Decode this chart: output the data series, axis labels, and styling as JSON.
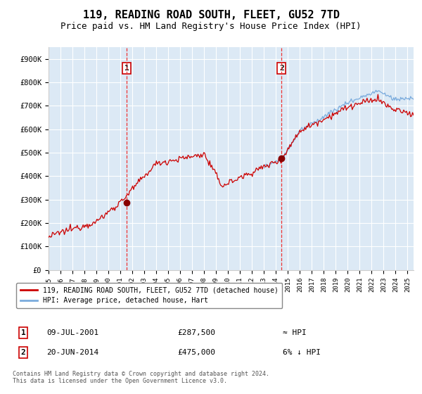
{
  "title": "119, READING ROAD SOUTH, FLEET, GU52 7TD",
  "subtitle": "Price paid vs. HM Land Registry's House Price Index (HPI)",
  "title_fontsize": 11,
  "subtitle_fontsize": 9,
  "background_color": "#ffffff",
  "plot_bg_color": "#dce9f5",
  "grid_color": "#ffffff",
  "red_line_color": "#cc0000",
  "blue_line_color": "#7aabdd",
  "dashed_line_color": "#ee3333",
  "marker_color": "#880000",
  "legend_label_red": "119, READING ROAD SOUTH, FLEET, GU52 7TD (detached house)",
  "legend_label_blue": "HPI: Average price, detached house, Hart",
  "annotation1_date": "09-JUL-2001",
  "annotation1_price": "£287,500",
  "annotation1_hpi": "≈ HPI",
  "annotation1_year": 2001.53,
  "annotation1_value": 287500,
  "annotation2_date": "20-JUN-2014",
  "annotation2_price": "£475,000",
  "annotation2_hpi": "6% ↓ HPI",
  "annotation2_year": 2014.47,
  "annotation2_value": 475000,
  "ylim": [
    0,
    950000
  ],
  "yticks": [
    0,
    100000,
    200000,
    300000,
    400000,
    500000,
    600000,
    700000,
    800000,
    900000
  ],
  "ytick_labels": [
    "£0",
    "£100K",
    "£200K",
    "£300K",
    "£400K",
    "£500K",
    "£600K",
    "£700K",
    "£800K",
    "£900K"
  ],
  "footer": "Contains HM Land Registry data © Crown copyright and database right 2024.\nThis data is licensed under the Open Government Licence v3.0.",
  "xstart": 1995,
  "xend": 2025.5
}
